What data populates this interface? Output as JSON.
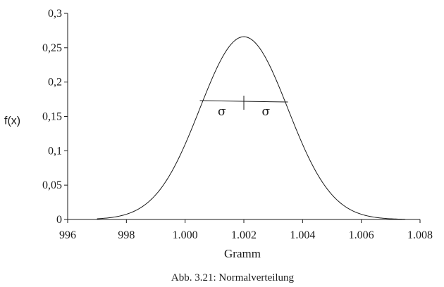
{
  "chart_data": {
    "type": "line",
    "title": "",
    "xlabel": "Gramm",
    "ylabel": "f(x)",
    "caption": "Abb. 3.21:  Normalverteilung",
    "xlim": [
      996,
      1008
    ],
    "ylim": [
      0,
      0.3
    ],
    "x_ticks": [
      {
        "value": 996,
        "label": "996"
      },
      {
        "value": 998,
        "label": "998"
      },
      {
        "value": 1000,
        "label": "1.000"
      },
      {
        "value": 1002,
        "label": "1.002"
      },
      {
        "value": 1004,
        "label": "1.004"
      },
      {
        "value": 1006,
        "label": "1.006"
      },
      {
        "value": 1008,
        "label": "1.008"
      }
    ],
    "y_ticks": [
      {
        "value": 0,
        "label": "0"
      },
      {
        "value": 0.05,
        "label": "0,05"
      },
      {
        "value": 0.1,
        "label": "0,1"
      },
      {
        "value": 0.15,
        "label": "0,15"
      },
      {
        "value": 0.2,
        "label": "0,2"
      },
      {
        "value": 0.25,
        "label": "0,25"
      },
      {
        "value": 0.3,
        "label": "0,3"
      }
    ],
    "series": [
      {
        "distribution": "normal",
        "mean": 1002,
        "sigma": 1.5,
        "x_range": [
          997,
          1007.5
        ],
        "color": "#1a1a1a"
      }
    ],
    "annotations": {
      "sigma_bar": {
        "x_from": 1000.5,
        "x_to": 1003.5,
        "y": 0.172,
        "center_x": 1002,
        "labels": [
          "σ",
          "σ"
        ]
      }
    },
    "grid": false,
    "legend": "none"
  }
}
